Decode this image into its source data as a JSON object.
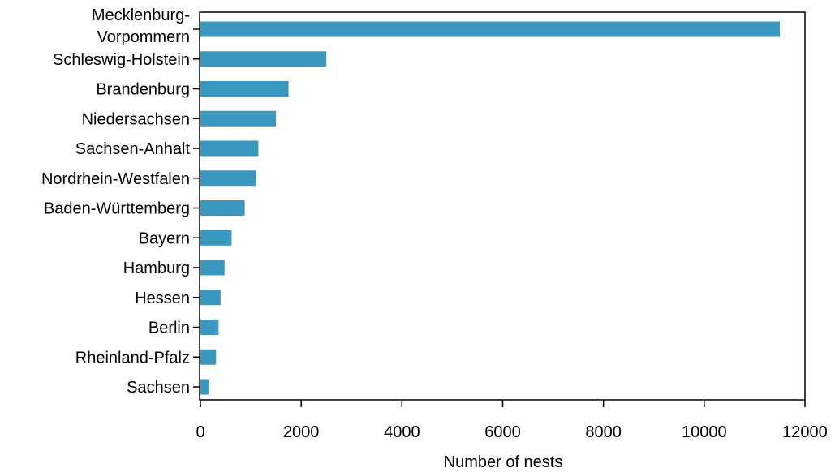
{
  "chart_data": {
    "type": "bar",
    "orientation": "horizontal",
    "categories": [
      [
        "Mecklenburg-",
        "Vorpommern"
      ],
      [
        "Schleswig-Holstein"
      ],
      [
        "Brandenburg"
      ],
      [
        "Niedersachsen"
      ],
      [
        "Sachsen-Anhalt"
      ],
      [
        "Nordrhein-Westfalen"
      ],
      [
        "Baden-Württemberg"
      ],
      [
        "Bayern"
      ],
      [
        "Hamburg"
      ],
      [
        "Hessen"
      ],
      [
        "Berlin"
      ],
      [
        "Rheinland-Pfalz"
      ],
      [
        "Sachsen"
      ]
    ],
    "values": [
      11500,
      2500,
      1750,
      1500,
      1150,
      1100,
      880,
      620,
      480,
      400,
      360,
      310,
      160
    ],
    "xlabel": "Number of nests",
    "ylabel": "",
    "xlim": [
      0,
      12000
    ],
    "xticks": [
      0,
      2000,
      4000,
      6000,
      8000,
      10000,
      12000
    ],
    "xtick_labels": [
      "0",
      "2000",
      "4000",
      "6000",
      "8000",
      "10000",
      "12000"
    ],
    "bar_color": "#3a98bf",
    "grid": false
  }
}
